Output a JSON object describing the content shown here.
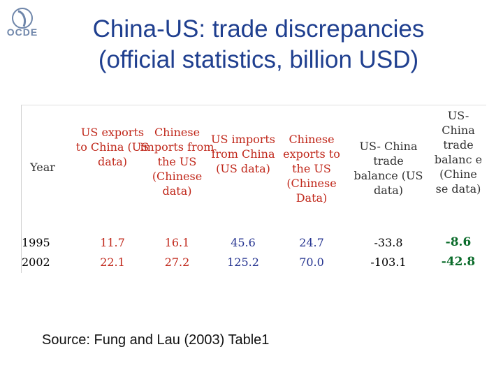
{
  "logo": {
    "text": "OCDE"
  },
  "title": {
    "line1": "China-US: trade discrepancies",
    "line2": "(official statistics, billion USD)"
  },
  "table": {
    "headers": [
      {
        "key": "year",
        "text": "Year"
      },
      {
        "key": "us_exports",
        "text": "US exports to China (US data)"
      },
      {
        "key": "cn_imports",
        "text": "Chinese imports from the US (Chinese data)"
      },
      {
        "key": "us_imports",
        "text": "US imports from China (US data)"
      },
      {
        "key": "cn_exports",
        "text": "Chinese exports to the US (Chinese Data)"
      },
      {
        "key": "us_balance",
        "text": "US- China trade balance (US data)"
      },
      {
        "key": "cn_balance",
        "text": "US- China trade balanc e (Chine se data)"
      }
    ],
    "rows": [
      {
        "year": "1995",
        "us_exports": "11.7",
        "cn_imports": "16.1",
        "us_imports": "45.6",
        "cn_exports": "24.7",
        "us_balance": "-33.8",
        "cn_balance": "-8.6"
      },
      {
        "year": "2002",
        "us_exports": "22.1",
        "cn_imports": "27.2",
        "us_imports": "125.2",
        "cn_exports": "70.0",
        "us_balance": "-103.1",
        "cn_balance": "-42.8"
      }
    ]
  },
  "source": "Source: Fung and Lau (2003) Table1",
  "colors": {
    "title": "#1f3f8f",
    "red_header": "#c0271a",
    "blue": "#23328f",
    "green_value": "#0a6b2a"
  }
}
